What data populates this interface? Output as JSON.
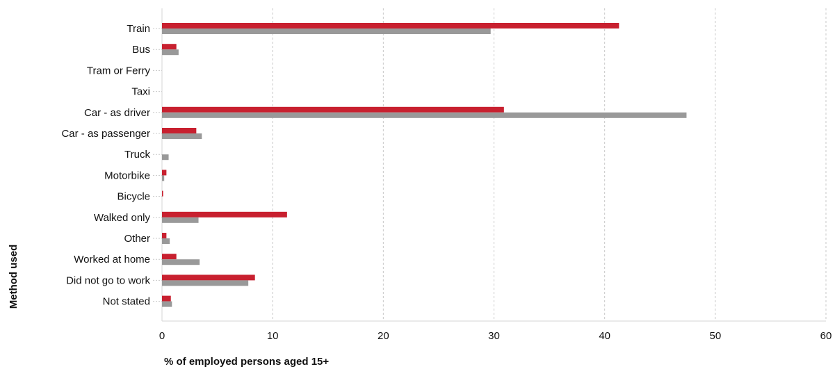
{
  "chart_data": {
    "type": "bar",
    "orientation": "horizontal",
    "categories": [
      "Train",
      "Bus",
      "Tram or Ferry",
      "Taxi",
      "Car - as driver",
      "Car - as passenger",
      "Truck",
      "Motorbike",
      "Bicycle",
      "Walked only",
      "Other",
      "Worked at home",
      "Did not go to work",
      "Not stated"
    ],
    "series": [
      {
        "color": "#c8202f",
        "values": [
          41.3,
          1.3,
          0.0,
          0.0,
          30.9,
          3.1,
          0.0,
          0.4,
          0.1,
          11.3,
          0.4,
          1.3,
          8.4,
          0.8
        ]
      },
      {
        "color": "#999999",
        "values": [
          29.7,
          1.5,
          0.0,
          0.0,
          47.4,
          3.6,
          0.6,
          0.2,
          0.0,
          3.3,
          0.7,
          3.4,
          7.8,
          0.9
        ]
      }
    ],
    "xlabel": "% of employed persons aged 15+",
    "ylabel": "Method used",
    "xlim": [
      0,
      60
    ],
    "xticks": [
      0,
      10,
      20,
      30,
      40,
      50,
      60
    ],
    "grid": "vertical dashed"
  }
}
